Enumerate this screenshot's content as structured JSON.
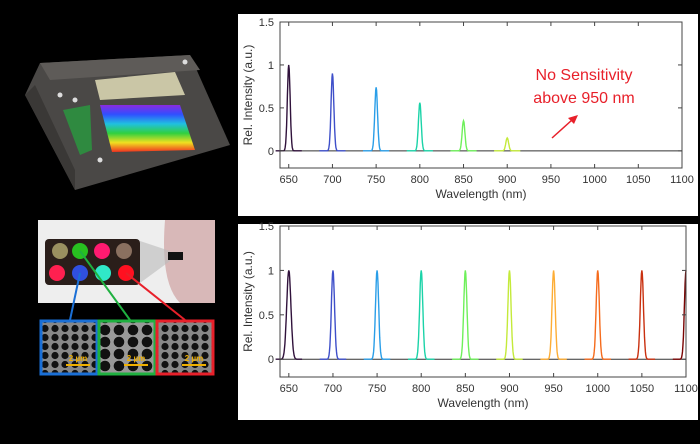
{
  "chart_data": [
    {
      "type": "line",
      "xlabel": "Wavelength (nm)",
      "ylabel": "Rel. Intensity (a.u.)",
      "xlim": [
        640,
        1100
      ],
      "ylim": [
        -0.2,
        1.5
      ],
      "xticks": [
        650,
        700,
        750,
        800,
        850,
        900,
        950,
        1000,
        1050,
        1100
      ],
      "yticks": [
        0,
        0.5,
        1,
        1.5
      ],
      "grid": false,
      "annotation": {
        "line1": "No Sensitivity",
        "line2": "above 950 nm",
        "color": "#e8202a"
      },
      "series": [
        {
          "peak_nm": 650,
          "peak": 1.0,
          "color": "#30123b"
        },
        {
          "peak_nm": 700,
          "peak": 0.9,
          "color": "#3e4fc9"
        },
        {
          "peak_nm": 750,
          "peak": 0.74,
          "color": "#2a9ee8"
        },
        {
          "peak_nm": 800,
          "peak": 0.56,
          "color": "#1bd3a8"
        },
        {
          "peak_nm": 850,
          "peak": 0.35,
          "color": "#6ef05a"
        },
        {
          "peak_nm": 900,
          "peak": 0.15,
          "color": "#c4ea3a"
        }
      ]
    },
    {
      "type": "line",
      "xlabel": "Wavelength (nm)",
      "ylabel": "Rel. Intensity (a.u.)",
      "xlim": [
        640,
        1100
      ],
      "ylim": [
        -0.2,
        1.5
      ],
      "xticks": [
        650,
        700,
        750,
        800,
        850,
        900,
        950,
        1000,
        1050,
        1100
      ],
      "yticks": [
        0,
        0.5,
        1,
        1.5
      ],
      "grid": false,
      "series": [
        {
          "peak_nm": 650,
          "peak": 1.0,
          "color": "#30123b"
        },
        {
          "peak_nm": 700,
          "peak": 1.0,
          "color": "#3e4fc9"
        },
        {
          "peak_nm": 750,
          "peak": 1.0,
          "color": "#2a9ee8"
        },
        {
          "peak_nm": 800,
          "peak": 1.0,
          "color": "#1bd3a8"
        },
        {
          "peak_nm": 850,
          "peak": 1.0,
          "color": "#6ef05a"
        },
        {
          "peak_nm": 900,
          "peak": 1.0,
          "color": "#c4ea3a"
        },
        {
          "peak_nm": 950,
          "peak": 1.0,
          "color": "#fdad35"
        },
        {
          "peak_nm": 1000,
          "peak": 1.0,
          "color": "#f56b1c"
        },
        {
          "peak_nm": 1050,
          "peak": 1.0,
          "color": "#c9300f"
        },
        {
          "peak_nm": 1100,
          "peak": 1.0,
          "color": "#7a0403"
        }
      ]
    }
  ],
  "sem_images": [
    {
      "scale": "2 µm",
      "color": "#1a6fd6"
    },
    {
      "scale": "2 µm",
      "color": "#1fb040"
    },
    {
      "scale": "2 µm",
      "color": "#e8202a"
    }
  ]
}
